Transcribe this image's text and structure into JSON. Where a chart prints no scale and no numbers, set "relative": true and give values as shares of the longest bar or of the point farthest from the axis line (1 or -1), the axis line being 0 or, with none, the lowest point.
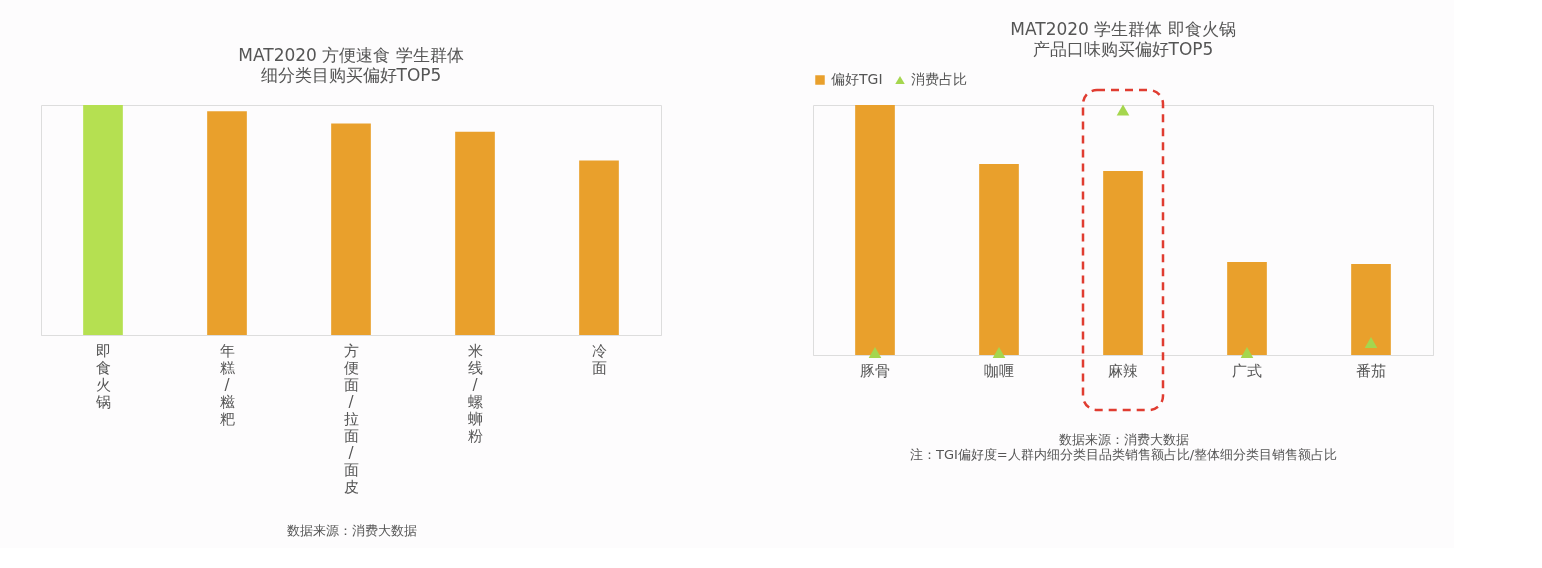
{
  "chart_data": [
    {
      "type": "bar",
      "title": "MAT2020 方便速食 学生群体",
      "subtitle": "细分类目购买偏好TOP5",
      "relative": true,
      "categories": [
        "即食火锅",
        "年糕/糍粑",
        "方便面/拉面/面皮",
        "米线/螺蛳粉",
        "冷面"
      ],
      "values": [
        1,
        0.973,
        0.92,
        0.884,
        0.759
      ],
      "colors": [
        "#b5e051",
        "#e9a02c",
        "#e9a02c",
        "#e9a02c",
        "#e9a02c"
      ],
      "annotations": [
        "数据来源：消费大数据"
      ],
      "grid": false,
      "legend": false
    },
    {
      "type": "bar",
      "title": "MAT2020 学生群体 即食火锅",
      "subtitle": "产品口味购买偏好TOP5",
      "relative": true,
      "categories": [
        "豚骨",
        "咖喱",
        "麻辣",
        "广式",
        "番茄"
      ],
      "series": [
        {
          "name": "偏好TGI",
          "type": "bar",
          "color": "#e9a02c",
          "values": [
            1,
            0.764,
            0.736,
            0.372,
            0.364
          ]
        },
        {
          "name": "消费占比",
          "type": "scatter",
          "marker": "triangle",
          "color": "#a5d64e",
          "values": [
            0.01,
            0.01,
            0.98,
            0.01,
            0.05
          ]
        }
      ],
      "annotations": [
        "数据来源：消费大数据",
        "注：TGI偏好度=人群内细分类目品类销售额占比/整体细分类目销售额占比"
      ],
      "grid": false,
      "legend": "top"
    }
  ]
}
